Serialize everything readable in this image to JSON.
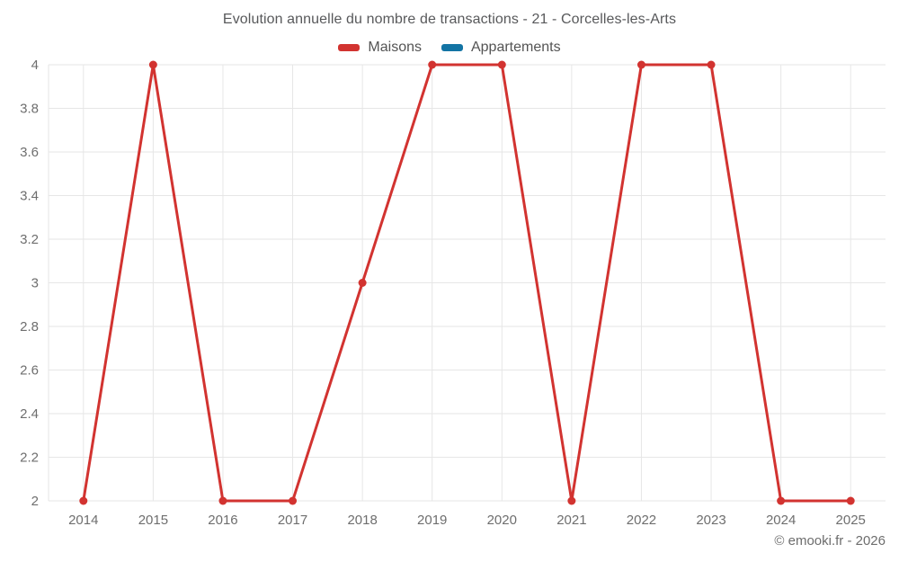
{
  "page": {
    "background": "#ffffff"
  },
  "chart": {
    "title": "Evolution annuelle du nombre de transactions - 21 - Corcelles-les-Arts",
    "footer": "© emooki.fr - 2026"
  },
  "chart_data": {
    "type": "line",
    "title": "Evolution annuelle du nombre de transactions - 21 - Corcelles-les-Arts",
    "xlabel": "",
    "ylabel": "",
    "categories": [
      "2014",
      "2015",
      "2016",
      "2017",
      "2018",
      "2019",
      "2020",
      "2021",
      "2022",
      "2023",
      "2024",
      "2025"
    ],
    "series": [
      {
        "name": "Maisons",
        "color": "#d23330",
        "values": [
          2,
          4,
          2,
          2,
          3,
          4,
          4,
          2,
          4,
          4,
          2,
          2
        ]
      },
      {
        "name": "Appartements",
        "color": "#1374a4",
        "values": []
      }
    ],
    "ylim": [
      2,
      4
    ],
    "yticks": [
      2,
      2.2,
      2.4,
      2.6,
      2.8,
      3,
      3.2,
      3.4,
      3.6,
      3.8,
      4
    ],
    "ytick_labels": [
      "2",
      "2.2",
      "2.4",
      "2.6",
      "2.8",
      "3",
      "3.2",
      "3.4",
      "3.6",
      "3.8",
      "4"
    ],
    "grid": true,
    "legend_position": "top",
    "gridline_color": "#e6e6e6",
    "tick_label_color": "#6e6e6e",
    "line_width": 3,
    "point_radius": 4.5
  }
}
